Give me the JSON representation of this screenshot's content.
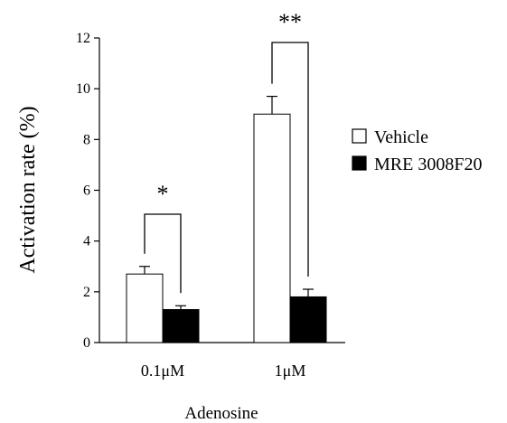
{
  "chart_data": {
    "type": "bar",
    "title": "",
    "xlabel": "Adenosine",
    "ylabel": "Activation rate (%)",
    "ylim": [
      0,
      12
    ],
    "yticks": [
      0,
      2,
      4,
      6,
      8,
      10,
      12
    ],
    "categories": [
      "0.1μM",
      "1μM"
    ],
    "series": [
      {
        "name": "Vehicle",
        "color": "#ffffff",
        "values": [
          2.7,
          9.0
        ],
        "errors": [
          0.3,
          0.7
        ]
      },
      {
        "name": "MRE 3008F20",
        "color": "#000000",
        "values": [
          1.3,
          1.8
        ],
        "errors": [
          0.15,
          0.3
        ]
      }
    ],
    "significance": [
      "*",
      "**"
    ],
    "legend_position": "right",
    "grid": false
  }
}
